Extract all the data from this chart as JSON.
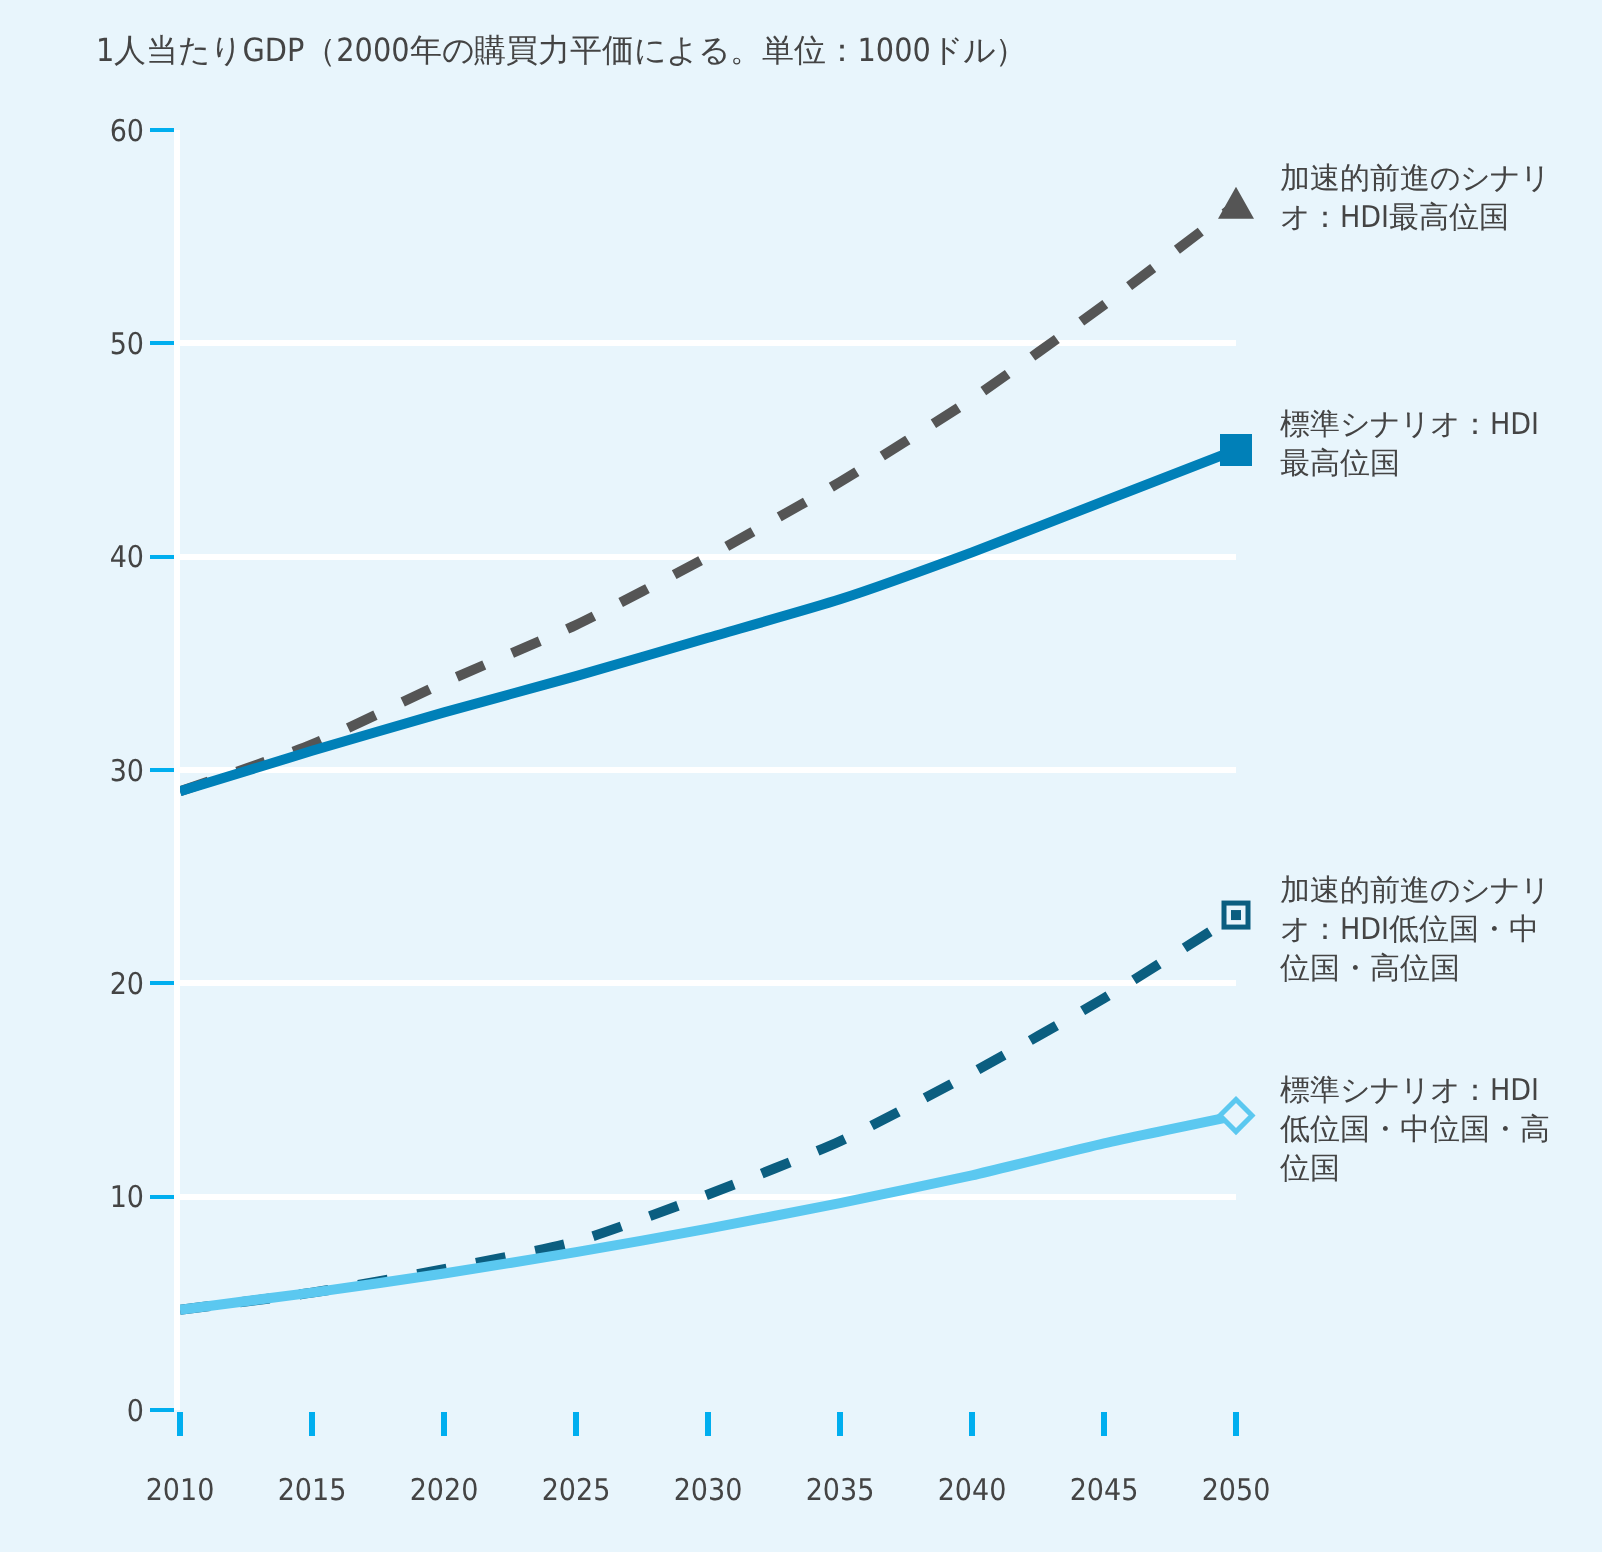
{
  "chart_data": {
    "type": "line",
    "title": "1人当たりGDP（2000年の購買力平価による。単位：1000ドル）",
    "x": [
      2010,
      2015,
      2020,
      2025,
      2030,
      2035,
      2040,
      2045,
      2050
    ],
    "xlim": [
      2010,
      2050
    ],
    "xticks": [
      2010,
      2015,
      2020,
      2025,
      2030,
      2035,
      2040,
      2045,
      2050
    ],
    "ylim": [
      0,
      60
    ],
    "yticks": [
      0,
      10,
      20,
      30,
      40,
      50,
      60
    ],
    "grid": "y",
    "legend": false,
    "series": [
      {
        "name": "加速的前進のシナリオ：HDI最高位国",
        "color": "#555555",
        "line_style": "dashed",
        "values": [
          29,
          31.2,
          34.1,
          36.8,
          40.0,
          43.5,
          47.4,
          51.8,
          56.5
        ]
      },
      {
        "name": "標準シナリオ：HDI最高位国",
        "color": "#0080b8",
        "line_style": "solid",
        "values": [
          29,
          30.9,
          32.7,
          34.4,
          36.2,
          38.0,
          40.2,
          42.6,
          45.0
        ]
      },
      {
        "name": "加速的前進のシナリオ：HDI低位国・中位国・高位国",
        "color": "#0b5e80",
        "line_style": "dashed",
        "values": [
          4.7,
          5.5,
          6.6,
          7.9,
          10.1,
          12.6,
          15.8,
          19.3,
          23.2
        ]
      },
      {
        "name": "標準シナリオ：HDI低位国・中位国・高位国",
        "color": "#5bc8f0",
        "line_style": "solid",
        "values": [
          4.7,
          5.5,
          6.4,
          7.4,
          8.5,
          9.7,
          11.0,
          12.5,
          13.8
        ]
      }
    ]
  }
}
